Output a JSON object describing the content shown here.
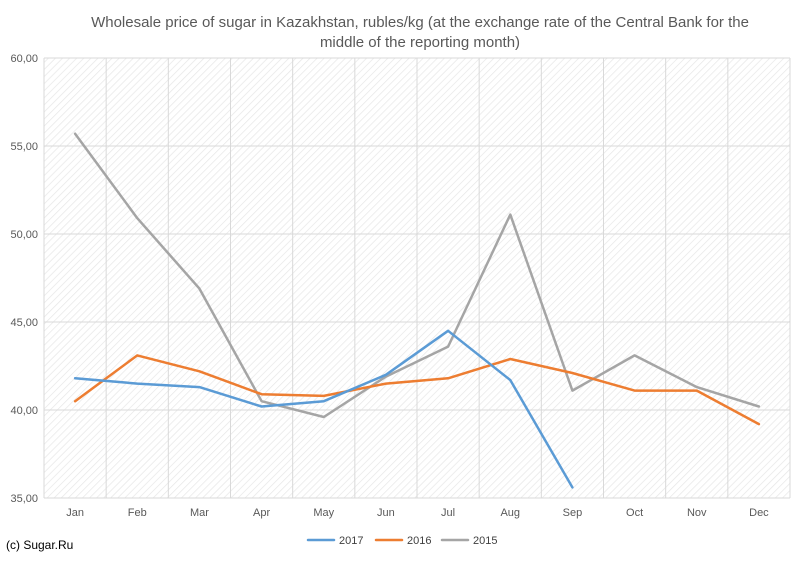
{
  "chart_data": {
    "type": "line",
    "title": "Wholesale price of sugar in Kazakhstan, rubles/kg (at the exchange rate of the Central Bank for the middle of the reporting month)",
    "title_lines": [
      "Wholesale price of sugar in Kazakhstan, rubles/kg (at the exchange rate of the Central Bank for the",
      "middle of the reporting month)"
    ],
    "categories": [
      "Jan",
      "Feb",
      "Mar",
      "Apr",
      "May",
      "Jun",
      "Jul",
      "Aug",
      "Sep",
      "Oct",
      "Nov",
      "Dec"
    ],
    "y_ticks": [
      "35,00",
      "40,00",
      "45,00",
      "50,00",
      "55,00",
      "60,00"
    ],
    "ylim": [
      35,
      60
    ],
    "grid": true,
    "legend_position": "bottom",
    "series": [
      {
        "name": "2017",
        "color": "#5B9BD5",
        "values": [
          41.8,
          41.5,
          41.3,
          40.2,
          40.5,
          42.0,
          44.5,
          41.7,
          35.6,
          null,
          null,
          null
        ]
      },
      {
        "name": "2016",
        "color": "#ED7D31",
        "values": [
          40.5,
          43.1,
          42.2,
          40.9,
          40.8,
          41.5,
          41.8,
          42.9,
          42.1,
          41.1,
          41.1,
          39.2
        ]
      },
      {
        "name": "2015",
        "color": "#A5A5A5",
        "values": [
          55.7,
          50.9,
          46.9,
          40.5,
          39.6,
          41.9,
          43.6,
          51.1,
          41.1,
          43.1,
          41.3,
          40.2
        ]
      }
    ]
  },
  "credit": "(c) Sugar.Ru"
}
